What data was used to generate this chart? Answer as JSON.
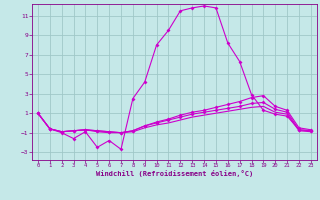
{
  "xlabel": "Windchill (Refroidissement éolien,°C)",
  "bg_color": "#c5e8e8",
  "grid_color": "#a0c8c8",
  "line_color": "#cc00cc",
  "xlim": [
    -0.5,
    23.5
  ],
  "ylim": [
    -3.8,
    12.2
  ],
  "xticks": [
    0,
    1,
    2,
    3,
    4,
    5,
    6,
    7,
    8,
    9,
    10,
    11,
    12,
    13,
    14,
    15,
    16,
    17,
    18,
    19,
    20,
    21,
    22,
    23
  ],
  "yticks": [
    -3,
    -1,
    1,
    3,
    5,
    7,
    9,
    11
  ],
  "line1_x": [
    0,
    1,
    2,
    3,
    4,
    5,
    6,
    7,
    8,
    9,
    10,
    11,
    12,
    13,
    14,
    15,
    16,
    17,
    18,
    19,
    20,
    21,
    22,
    23
  ],
  "line1_y": [
    1.0,
    -0.6,
    -1.0,
    -1.6,
    -0.9,
    -2.5,
    -1.8,
    -2.7,
    2.5,
    4.2,
    8.0,
    9.5,
    11.5,
    11.8,
    12.0,
    11.8,
    8.2,
    6.3,
    2.9,
    1.3,
    0.9,
    0.7,
    -0.7,
    -0.8
  ],
  "line2_x": [
    0,
    1,
    2,
    3,
    4,
    5,
    6,
    7,
    8,
    9,
    10,
    11,
    12,
    13,
    14,
    15,
    16,
    17,
    18,
    19,
    20,
    21,
    22,
    23
  ],
  "line2_y": [
    1.0,
    -0.6,
    -0.9,
    -0.8,
    -0.7,
    -0.8,
    -0.9,
    -1.0,
    -0.8,
    -0.3,
    0.1,
    0.4,
    0.8,
    1.1,
    1.3,
    1.6,
    1.9,
    2.2,
    2.6,
    2.8,
    1.7,
    1.3,
    -0.5,
    -0.7
  ],
  "line3_x": [
    0,
    1,
    2,
    3,
    4,
    5,
    6,
    7,
    8,
    9,
    10,
    11,
    12,
    13,
    14,
    15,
    16,
    17,
    18,
    19,
    20,
    21,
    22,
    23
  ],
  "line3_y": [
    1.0,
    -0.6,
    -0.9,
    -0.8,
    -0.7,
    -0.8,
    -0.9,
    -1.0,
    -0.8,
    -0.3,
    0.0,
    0.3,
    0.6,
    0.9,
    1.1,
    1.3,
    1.5,
    1.7,
    2.0,
    2.1,
    1.4,
    1.1,
    -0.7,
    -0.8
  ],
  "line4_x": [
    0,
    1,
    2,
    3,
    4,
    5,
    6,
    7,
    8,
    9,
    10,
    11,
    12,
    13,
    14,
    15,
    16,
    17,
    18,
    19,
    20,
    21,
    22,
    23
  ],
  "line4_y": [
    1.0,
    -0.6,
    -0.9,
    -0.8,
    -0.7,
    -0.9,
    -1.0,
    -1.0,
    -0.9,
    -0.5,
    -0.2,
    0.0,
    0.3,
    0.6,
    0.8,
    1.0,
    1.2,
    1.4,
    1.6,
    1.7,
    1.1,
    0.9,
    -0.8,
    -0.9
  ]
}
